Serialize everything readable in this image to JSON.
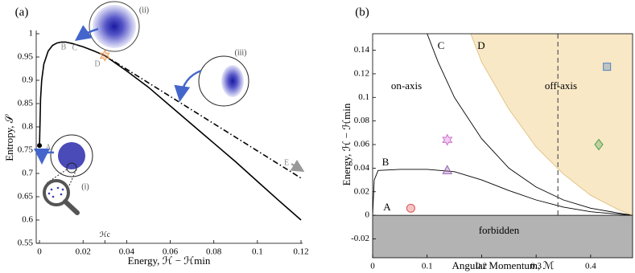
{
  "chart_data": [
    {
      "type": "line",
      "panel_label": "(a)",
      "xlabel": "Energy, ℋ − ℋmin",
      "ylabel": "Entropy, 𝒮",
      "xlim": [
        -0.0015,
        0.12
      ],
      "ylim": [
        0.55,
        1.0
      ],
      "xticks": [
        0,
        0.02,
        {
          "value": 0.03,
          "label": "ℋc"
        },
        0.04,
        0.06,
        0.08,
        0.1,
        0.12
      ],
      "yticks": [
        0.55,
        0.6,
        0.65,
        0.7,
        0.75,
        0.8,
        0.85,
        0.9,
        0.95,
        1
      ],
      "series": [
        {
          "color": "#000000",
          "dash": "solid",
          "x": [
            0,
            0.0005,
            0.001,
            0.002,
            0.004,
            0.006,
            0.008,
            0.01,
            0.012,
            0.015,
            0.02,
            0.025,
            0.03,
            0.04,
            0.05,
            0.06,
            0.07,
            0.08,
            0.09,
            0.1,
            0.11,
            0.12
          ],
          "values": [
            0.76,
            0.86,
            0.9,
            0.935,
            0.963,
            0.975,
            0.98,
            0.982,
            0.982,
            0.979,
            0.972,
            0.963,
            0.953,
            0.92,
            0.885,
            0.845,
            0.805,
            0.765,
            0.725,
            0.683,
            0.641,
            0.6
          ]
        },
        {
          "color": "#000000",
          "dash": "dashdot",
          "x": [
            0.03,
            0.12
          ],
          "values": [
            0.953,
            0.69
          ]
        }
      ],
      "points": [
        {
          "x": 0,
          "y": 0.76,
          "color": "#000000",
          "marker": "dot"
        },
        {
          "x": 0.03,
          "y": 0.953,
          "color": "#f0a060",
          "marker": "star6"
        }
      ],
      "annotations": [
        "A",
        "B",
        "C",
        "D",
        "E",
        "(i)",
        "(ii)",
        "(iii)"
      ]
    },
    {
      "type": "line",
      "panel_label": "(b)",
      "xlabel": "Angular Momentum, ℳ",
      "ylabel": "Energy, ℋ − ℋmin",
      "xlim": [
        0,
        0.477
      ],
      "ylim": [
        -0.036,
        0.154
      ],
      "xticks": [
        0,
        0.1,
        0.2,
        0.3,
        0.4
      ],
      "yticks": [
        -0.02,
        0,
        0.02,
        0.04,
        0.06,
        0.08,
        0.1,
        0.12,
        0.14
      ],
      "series": [
        {
          "color": "#000000",
          "dash": "solid",
          "x": [
            0,
            0.003,
            0.01,
            0.05,
            0.1,
            0.15,
            0.2,
            0.25,
            0.3,
            0.35,
            0.4,
            0.45,
            0.477
          ],
          "values": [
            0,
            0.03,
            0.038,
            0.039,
            0.039,
            0.037,
            0.03,
            0.021,
            0.013,
            0.007,
            0.003,
            0.001,
            0
          ]
        },
        {
          "color": "#000000",
          "dash": "solid",
          "x": [
            0.1,
            0.12,
            0.15,
            0.2,
            0.25,
            0.3,
            0.35,
            0.4,
            0.45,
            0.477
          ],
          "values": [
            0.154,
            0.13,
            0.1,
            0.065,
            0.04,
            0.024,
            0.013,
            0.006,
            0.002,
            0
          ]
        },
        {
          "color": "#e0c080",
          "dash": "solid",
          "fill": "#f8e8c6",
          "x": [
            0.18,
            0.2,
            0.25,
            0.3,
            0.35,
            0.4,
            0.45,
            0.477
          ],
          "values": [
            0.154,
            0.13,
            0.09,
            0.058,
            0.035,
            0.017,
            0.005,
            0
          ]
        }
      ],
      "vline": 0.34,
      "forbidden_fill": "#b3b3b3",
      "points": [
        {
          "x": 0.07,
          "y": 0.006,
          "color": "#e05050",
          "marker": "circle"
        },
        {
          "x": 0.137,
          "y": 0.038,
          "color": "#9a60b0",
          "marker": "triangle"
        },
        {
          "x": 0.137,
          "y": 0.064,
          "color": "#d070d0",
          "marker": "star6"
        },
        {
          "x": 0.43,
          "y": 0.126,
          "color": "#5080c0",
          "marker": "square"
        },
        {
          "x": 0.415,
          "y": 0.06,
          "color": "#50a050",
          "marker": "diamond"
        }
      ],
      "annotations": [
        "A",
        "B",
        "C",
        "D",
        "on-axis",
        "off-axis",
        "forbidden"
      ]
    }
  ]
}
